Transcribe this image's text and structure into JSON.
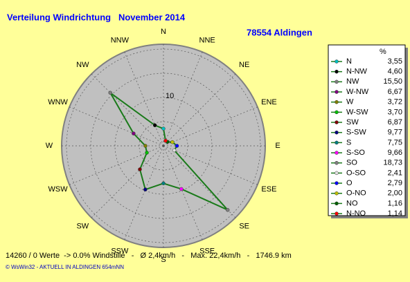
{
  "chart_data": {
    "type": "windrose",
    "title": "Verteilung Windrichtung   November 2014",
    "subtitle": "78554 Aldingen",
    "directions": [
      "N",
      "NNE",
      "NE",
      "ENE",
      "E",
      "ESE",
      "SE",
      "SSE",
      "S",
      "SSW",
      "SW",
      "WSW",
      "W",
      "WNW",
      "NW",
      "NNW"
    ],
    "legend_header": "%",
    "categories": [
      "N",
      "N-NW",
      "NW",
      "W-NW",
      "W",
      "W-SW",
      "SW",
      "S-SW",
      "S",
      "S-SO",
      "SO",
      "O-SO",
      "O",
      "O-NO",
      "NO",
      "N-NO"
    ],
    "colors": [
      "#00c0c0",
      "#000000",
      "#808080",
      "#800080",
      "#808000",
      "#00c000",
      "#800000",
      "#000080",
      "#008080",
      "#ff00ff",
      "#808080",
      "#e0e0e0",
      "#0000ff",
      "#c0c000",
      "#006000",
      "#ff0000"
    ],
    "values": [
      3.55,
      4.6,
      15.5,
      6.67,
      3.72,
      3.7,
      6.87,
      9.77,
      7.75,
      9.66,
      18.73,
      2.41,
      2.79,
      2.0,
      1.16,
      1.14
    ],
    "value_labels": [
      "3,55",
      "4,60",
      "15,50",
      "6,67",
      "3,72",
      "3,70",
      "6,87",
      "9,77",
      "7,75",
      "9,66",
      "18,73",
      "2,41",
      "2,79",
      "2,00",
      "1,16",
      "1,14"
    ],
    "line_color": "#1a7a1a",
    "rlim": [
      0,
      21
    ],
    "rticks": [
      10
    ],
    "footer": "14260 / 0 Werte  -> 0.0% Windstille   -   Ø 2,4km/h   -   Max. 22,4km/h   -   1746.9 km",
    "credit": "© WsWin32  -  AKTUELL IN ALDINGEN 654mNN"
  }
}
